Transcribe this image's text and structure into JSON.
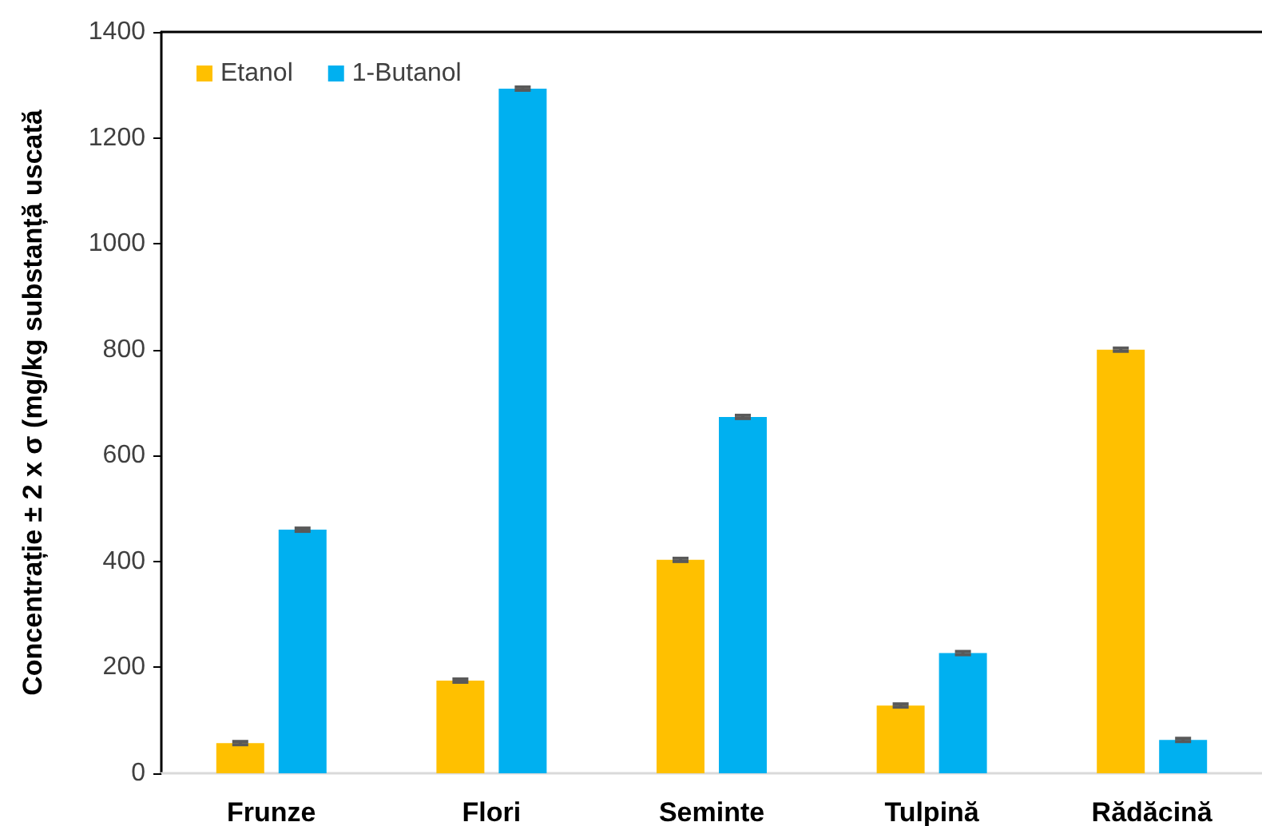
{
  "chart_data": {
    "type": "bar",
    "ylabel": "Concentrație ± 2 x σ (mg/kg substanță uscată",
    "categories": [
      "Frunze",
      "Flori",
      "Seminte",
      "Tulpină",
      "Rădăcină"
    ],
    "series": [
      {
        "name": "Etanol",
        "color": "#ffc000",
        "values": [
          57,
          175,
          403,
          128,
          800
        ],
        "errors": [
          3,
          3,
          3,
          3,
          3
        ]
      },
      {
        "name": "1-Butanol",
        "color": "#00b0f0",
        "values": [
          460,
          1293,
          673,
          227,
          63
        ],
        "errors": [
          3,
          3,
          3,
          3,
          3
        ]
      }
    ],
    "ylim": [
      0,
      1400
    ],
    "yticks": [
      0,
      200,
      400,
      600,
      800,
      1000,
      1200,
      1400
    ],
    "grid": false,
    "legend": "top left"
  }
}
